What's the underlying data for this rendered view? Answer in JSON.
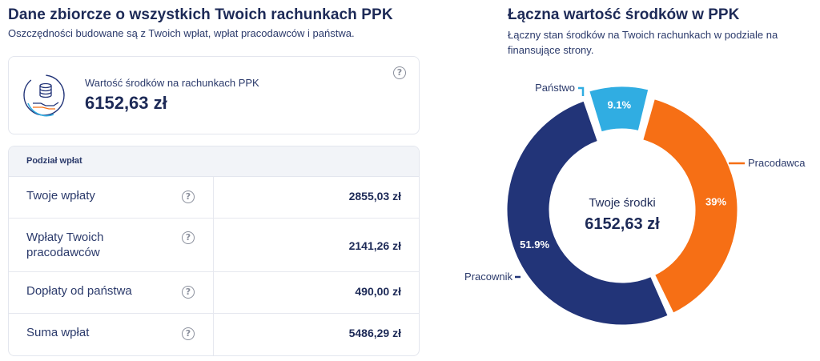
{
  "left": {
    "title": "Dane zbiorcze o wszystkich Twoich rachunkach PPK",
    "subtitle": "Oszczędności budowane są z Twoich wpłat, wpłat pracodawców i państwa.",
    "card": {
      "icon": "coins-hand-icon",
      "label": "Wartość środków na rachunkach PPK",
      "value": "6152,63 zł"
    },
    "table": {
      "header": "Podział wpłat",
      "rows": [
        {
          "label": "Twoje wpłaty",
          "value": "2855,03 zł"
        },
        {
          "label": "Wpłaty Twoich pracodawców",
          "value": "2141,26 zł"
        },
        {
          "label": "Dopłaty od państwa",
          "value": "490,00 zł"
        },
        {
          "label": "Suma wpłat",
          "value": "5486,29 zł"
        }
      ]
    }
  },
  "right": {
    "title": "Łączna wartość środków w PPK",
    "subtitle": "Łączny stan środków na Twoich rachunkach w podziale na finansujące strony."
  },
  "chart_data": {
    "type": "pie",
    "donut": true,
    "center_label": "Twoje środki",
    "center_value": "6152,63 zł",
    "slices": [
      {
        "name": "Państwo",
        "value": 9.1,
        "label": "9.1%",
        "color": "#30ade2"
      },
      {
        "name": "Pracodawca",
        "value": 39,
        "label": "39%",
        "color": "#f66f15"
      },
      {
        "name": "Pracownik",
        "value": 51.9,
        "label": "51.9%",
        "color": "#223478"
      }
    ]
  }
}
